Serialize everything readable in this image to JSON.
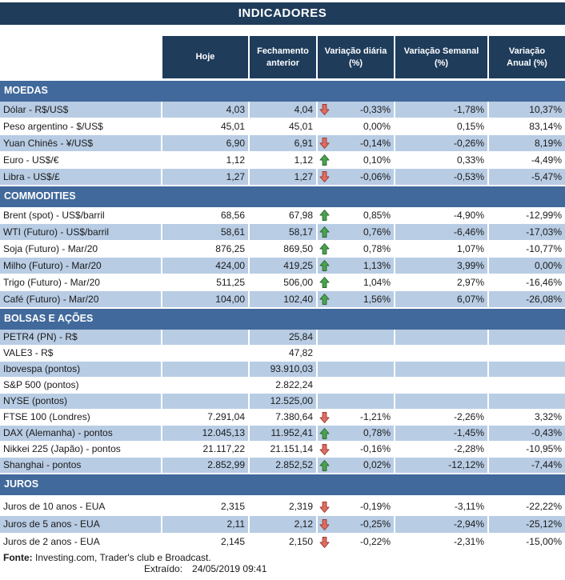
{
  "title": "INDICADORES",
  "columns": [
    [
      "Hoje"
    ],
    [
      "Fechamento",
      "anterior"
    ],
    [
      "Variação diária",
      "(%)"
    ],
    [
      "Variação Semanal",
      "(%)"
    ],
    [
      "Variação",
      "Anual (%)"
    ]
  ],
  "sections": [
    {
      "name": "MOEDAS",
      "slug": "moedas",
      "rows": [
        {
          "label": "Dólar - R$/US$",
          "hoje": "4,03",
          "fechamento": "4,04",
          "arrow": "down",
          "diaria": "-0,33%",
          "semanal": "-1,78%",
          "anual": "10,37%",
          "shade": true
        },
        {
          "label": "Peso argentino - $/US$",
          "hoje": "45,01",
          "fechamento": "45,01",
          "arrow": "",
          "diaria": "0,00%",
          "semanal": "0,15%",
          "anual": "83,14%",
          "shade": false
        },
        {
          "label": "Yuan Chinês - ¥/US$",
          "hoje": "6,90",
          "fechamento": "6,91",
          "arrow": "down",
          "diaria": "-0,14%",
          "semanal": "-0,26%",
          "anual": "8,19%",
          "shade": true
        },
        {
          "label": "Euro - US$/€",
          "hoje": "1,12",
          "fechamento": "1,12",
          "arrow": "up",
          "diaria": "0,10%",
          "semanal": "0,33%",
          "anual": "-4,49%",
          "shade": false
        },
        {
          "label": "Libra - US$/£",
          "hoje": "1,27",
          "fechamento": "1,27",
          "arrow": "down",
          "diaria": "-0,06%",
          "semanal": "-0,53%",
          "anual": "-5,47%",
          "shade": true
        }
      ]
    },
    {
      "name": "COMMODITIES",
      "slug": "commodities",
      "rows": [
        {
          "label": "Brent (spot) - US$/barril",
          "hoje": "68,56",
          "fechamento": "67,98",
          "arrow": "up",
          "diaria": "0,85%",
          "semanal": "-4,90%",
          "anual": "-12,99%",
          "shade": false
        },
        {
          "label": "WTI (Futuro) - US$/barril",
          "hoje": "58,61",
          "fechamento": "58,17",
          "arrow": "up",
          "diaria": "0,76%",
          "semanal": "-6,46%",
          "anual": "-17,03%",
          "shade": true
        },
        {
          "label": "Soja (Futuro) - Mar/20",
          "hoje": "876,25",
          "fechamento": "869,50",
          "arrow": "up",
          "diaria": "0,78%",
          "semanal": "1,07%",
          "anual": "-10,77%",
          "shade": false
        },
        {
          "label": "Milho (Futuro) - Mar/20",
          "hoje": "424,00",
          "fechamento": "419,25",
          "arrow": "up",
          "diaria": "1,13%",
          "semanal": "3,99%",
          "anual": "0,00%",
          "shade": true
        },
        {
          "label": "Trigo (Futuro) - Mar/20",
          "hoje": "511,25",
          "fechamento": "506,00",
          "arrow": "up",
          "diaria": "1,04%",
          "semanal": "2,97%",
          "anual": "-16,46%",
          "shade": false
        },
        {
          "label": "Café (Futuro) - Mar/20",
          "hoje": "104,00",
          "fechamento": "102,40",
          "arrow": "up",
          "diaria": "1,56%",
          "semanal": "6,07%",
          "anual": "-26,08%",
          "shade": true
        }
      ]
    },
    {
      "name": "BOLSAS E AÇÕES",
      "slug": "bolsas",
      "rows": [
        {
          "label": "PETR4 (PN) - R$",
          "hoje": "",
          "fechamento": "25,84",
          "arrow": "",
          "diaria": "",
          "semanal": "",
          "anual": "",
          "shade": true
        },
        {
          "label": "VALE3 - R$",
          "hoje": "",
          "fechamento": "47,82",
          "arrow": "",
          "diaria": "",
          "semanal": "",
          "anual": "",
          "shade": false
        },
        {
          "label": "Ibovespa (pontos)",
          "hoje": "",
          "fechamento": "93.910,03",
          "arrow": "",
          "diaria": "",
          "semanal": "",
          "anual": "",
          "shade": true
        },
        {
          "label": "S&P 500 (pontos)",
          "hoje": "",
          "fechamento": "2.822,24",
          "arrow": "",
          "diaria": "",
          "semanal": "",
          "anual": "",
          "shade": false
        },
        {
          "label": "NYSE (pontos)",
          "hoje": "",
          "fechamento": "12.525,00",
          "arrow": "",
          "diaria": "",
          "semanal": "",
          "anual": "",
          "shade": true
        },
        {
          "label": "FTSE 100 (Londres)",
          "hoje": "7.291,04",
          "fechamento": "7.380,64",
          "arrow": "down",
          "diaria": "-1,21%",
          "semanal": "-2,26%",
          "anual": "3,32%",
          "shade": false
        },
        {
          "label": "DAX (Alemanha) - pontos",
          "hoje": "12.045,13",
          "fechamento": "11.952,41",
          "arrow": "up",
          "diaria": "0,78%",
          "semanal": "-1,45%",
          "anual": "-0,43%",
          "shade": true
        },
        {
          "label": "Nikkei 225 (Japão) - pontos",
          "hoje": "21.117,22",
          "fechamento": "21.151,14",
          "arrow": "down",
          "diaria": "-0,16%",
          "semanal": "-2,28%",
          "anual": "-10,95%",
          "shade": false
        },
        {
          "label": "Shanghai - pontos",
          "hoje": "2.852,99",
          "fechamento": "2.852,52",
          "arrow": "up",
          "diaria": "0,02%",
          "semanal": "-12,12%",
          "anual": "-7,44%",
          "shade": true
        }
      ]
    },
    {
      "name": "JUROS",
      "slug": "juros",
      "rows": [
        {
          "label": "Juros de 10 anos - EUA",
          "hoje": "2,315",
          "fechamento": "2,319",
          "arrow": "down",
          "diaria": "-0,19%",
          "semanal": "-3,11%",
          "anual": "-22,22%",
          "shade": false
        },
        {
          "label": "Juros de 5 anos - EUA",
          "hoje": "2,11",
          "fechamento": "2,12",
          "arrow": "down",
          "diaria": "-0,25%",
          "semanal": "-2,94%",
          "anual": "-25,12%",
          "shade": true
        },
        {
          "label": "Juros de 2 anos - EUA",
          "hoje": "2,145",
          "fechamento": "2,150",
          "arrow": "down",
          "diaria": "-0,22%",
          "semanal": "-2,31%",
          "anual": "-15,00%",
          "shade": false
        }
      ]
    }
  ],
  "footer": {
    "fonte_label": "Fonte:",
    "fonte_text": " Investing.com, Trader's club e Broadcast.",
    "extraido_label": "Extraído:",
    "extraido_value": "24/05/2019 09:41"
  },
  "colors": {
    "header_navy": "#1F3C5B",
    "section_blue": "#41699B",
    "row_shade": "#B8CCE4",
    "row_white": "#FFFFFF",
    "text": "#1A1A1A",
    "up_arrow_fill": "#4CA24F",
    "up_arrow_stroke": "#29682C",
    "down_arrow_fill": "#DF6D60",
    "down_arrow_stroke": "#9A3A34"
  }
}
